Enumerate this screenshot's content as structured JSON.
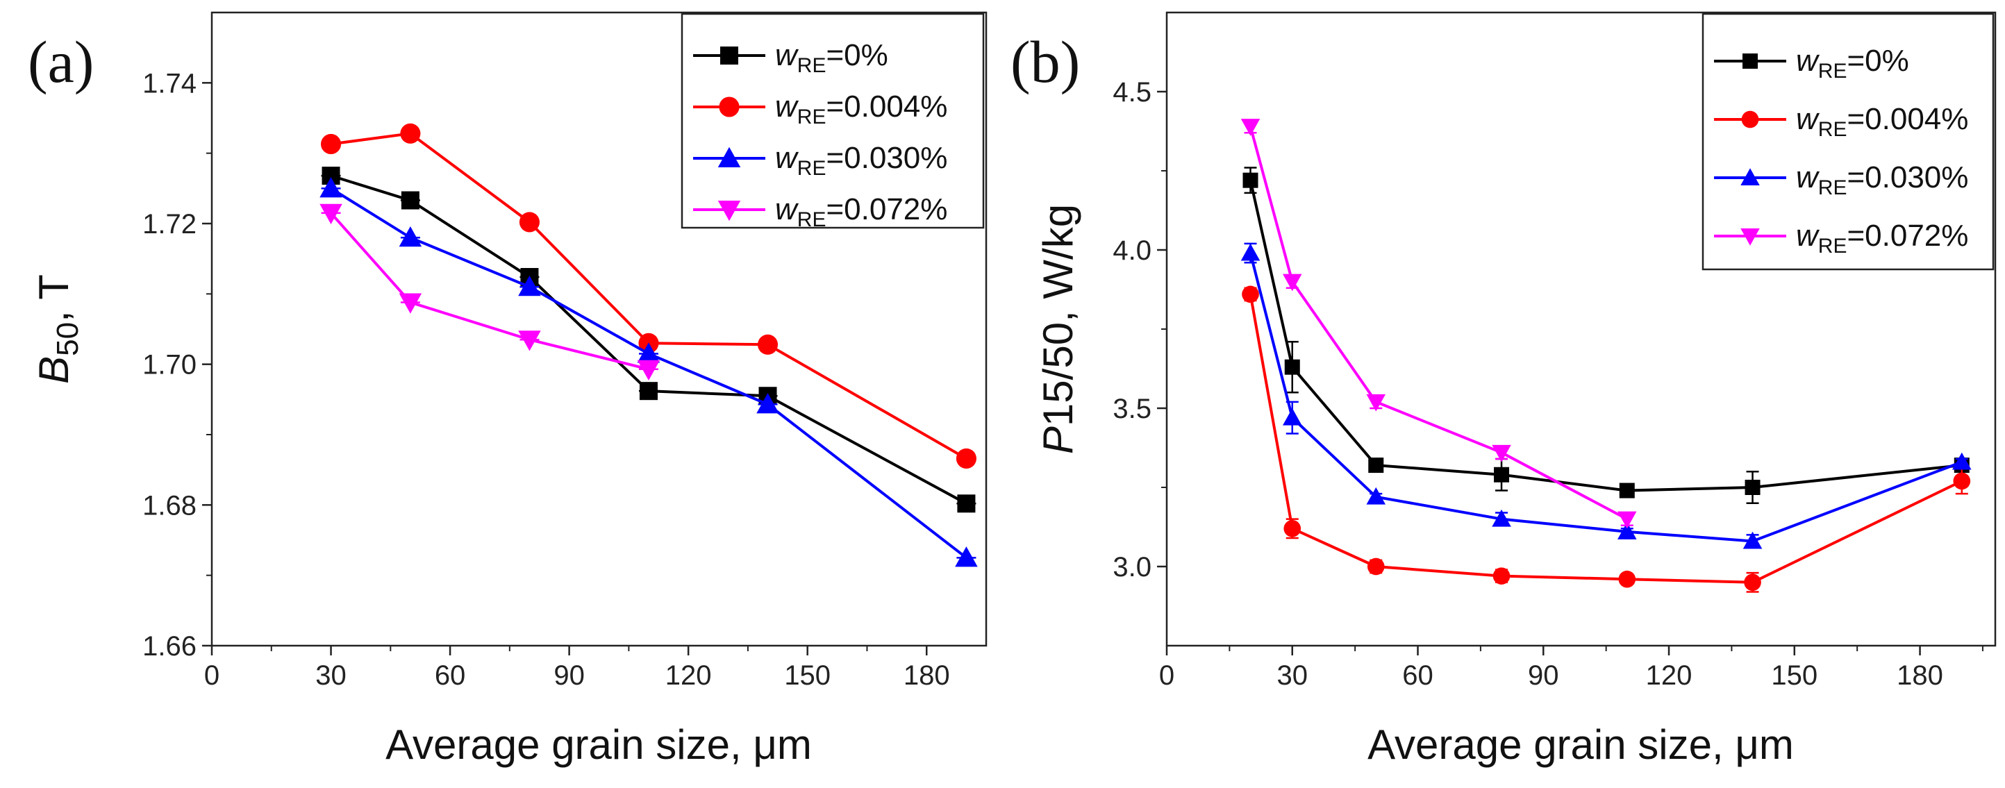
{
  "chart_data": [
    {
      "type": "line",
      "panel_label": "(a)",
      "title": "",
      "xlabel": "Average grain size, μm",
      "ylabel_italic": "B",
      "ylabel_sub": "50",
      "ylabel_rest": ", T",
      "xlim": [
        0,
        195
      ],
      "ylim": [
        1.66,
        1.75
      ],
      "xticks": [
        "0",
        "30",
        "60",
        "90",
        "120",
        "150",
        "180"
      ],
      "yticks": [
        "1.66",
        "1.68",
        "1.70",
        "1.72",
        "1.74"
      ],
      "legend_position": "top-right",
      "series": [
        {
          "legend_italic": "w",
          "legend_sub": "RE",
          "legend_rest": "=0%",
          "color": "#000000",
          "marker": "square",
          "x": [
            30,
            50,
            80,
            110,
            140,
            190
          ],
          "values": [
            1.7268,
            1.7233,
            1.7124,
            1.6962,
            1.6955,
            1.6802
          ]
        },
        {
          "legend_italic": "w",
          "legend_sub": "RE",
          "legend_rest": "=0.004%",
          "color": "#ff0000",
          "marker": "circle",
          "x": [
            30,
            50,
            80,
            110,
            140,
            190
          ],
          "values": [
            1.7313,
            1.7328,
            1.7202,
            1.703,
            1.7028,
            1.6866
          ]
        },
        {
          "legend_italic": "w",
          "legend_sub": "RE",
          "legend_rest": "=0.030%",
          "color": "#0000ff",
          "marker": "triangle-up",
          "x": [
            30,
            50,
            80,
            110,
            140,
            190
          ],
          "values": [
            1.725,
            1.718,
            1.711,
            1.7015,
            1.6943,
            1.6725
          ]
        },
        {
          "legend_italic": "w",
          "legend_sub": "RE",
          "legend_rest": "=0.072%",
          "color": "#ff00ff",
          "marker": "triangle-down",
          "x": [
            30,
            50,
            80,
            110
          ],
          "values": [
            1.7215,
            1.7088,
            1.7035,
            1.6993
          ]
        }
      ]
    },
    {
      "type": "line",
      "panel_label": "(b)",
      "title": "",
      "xlabel": "Average grain size, μm",
      "ylabel_italic": "P",
      "ylabel_sub": "",
      "ylabel_rest": "15/50, W/kg",
      "xlim": [
        0,
        198
      ],
      "ylim": [
        2.75,
        4.75
      ],
      "xticks": [
        "0",
        "30",
        "60",
        "90",
        "120",
        "150",
        "180"
      ],
      "yticks": [
        "3.0",
        "3.5",
        "4.0",
        "4.5"
      ],
      "legend_position": "top-right",
      "series": [
        {
          "legend_italic": "w",
          "legend_sub": "RE",
          "legend_rest": "=0%",
          "color": "#000000",
          "marker": "square",
          "x": [
            20,
            30,
            50,
            80,
            110,
            140,
            190
          ],
          "values": [
            4.22,
            3.63,
            3.32,
            3.29,
            3.24,
            3.25,
            3.32
          ],
          "errors": [
            0.04,
            0.08,
            0.02,
            0.05,
            0.02,
            0.05,
            0.02
          ]
        },
        {
          "legend_italic": "w",
          "legend_sub": "RE",
          "legend_rest": "=0.004%",
          "color": "#ff0000",
          "marker": "circle",
          "x": [
            20,
            30,
            50,
            80,
            110,
            140,
            190
          ],
          "values": [
            3.86,
            3.12,
            3.0,
            2.97,
            2.96,
            2.95,
            3.27
          ],
          "errors": [
            0.02,
            0.03,
            0.02,
            0.02,
            0.01,
            0.03,
            0.04
          ]
        },
        {
          "legend_italic": "w",
          "legend_sub": "RE",
          "legend_rest": "=0.030%",
          "color": "#0000ff",
          "marker": "triangle-up",
          "x": [
            20,
            30,
            50,
            80,
            110,
            140,
            190
          ],
          "values": [
            3.99,
            3.47,
            3.22,
            3.15,
            3.11,
            3.08,
            3.33
          ],
          "errors": [
            0.03,
            0.05,
            0.01,
            0.02,
            0.01,
            0.02,
            0.01
          ]
        },
        {
          "legend_italic": "w",
          "legend_sub": "RE",
          "legend_rest": "=0.072%",
          "color": "#ff00ff",
          "marker": "triangle-down",
          "x": [
            20,
            30,
            50,
            80,
            110
          ],
          "values": [
            4.39,
            3.9,
            3.52,
            3.36,
            3.15
          ],
          "errors": [
            0.02,
            0.02,
            0.02,
            0.02,
            0.02
          ]
        }
      ]
    }
  ]
}
